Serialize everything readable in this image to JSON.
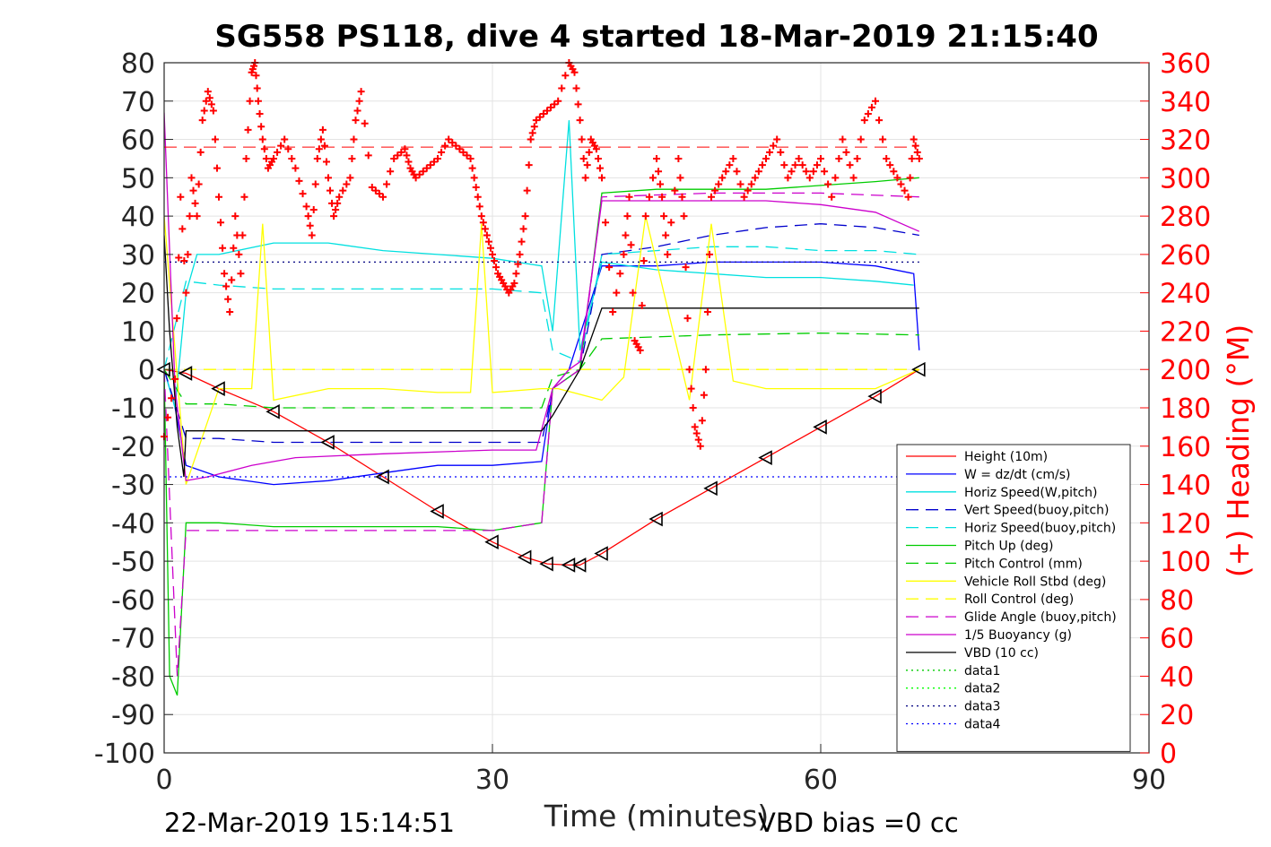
{
  "chart_data": {
    "type": "line",
    "title": "SG558 PS118, dive 4 started 18-Mar-2019 21:15:40",
    "xlabel": "Time (minutes)",
    "ylabel": "",
    "y2label": "(+) Heading (°M)",
    "xlim": [
      0,
      90
    ],
    "ylim": [
      -100,
      80
    ],
    "y2lim": [
      0,
      360
    ],
    "x_ticks": [
      "0",
      "30",
      "60",
      "90"
    ],
    "y_ticks": [
      "80",
      "70",
      "60",
      "50",
      "40",
      "30",
      "20",
      "10",
      "0",
      "-10",
      "-20",
      "-30",
      "-40",
      "-50",
      "-60",
      "-70",
      "-80",
      "-90",
      "-100"
    ],
    "y2_ticks": [
      "360",
      "340",
      "320",
      "300",
      "280",
      "260",
      "240",
      "220",
      "200",
      "180",
      "160",
      "140",
      "120",
      "100",
      "80",
      "60",
      "40",
      "20",
      "0"
    ],
    "grid": true,
    "legend_position": "bottom-right",
    "footer_left": "22-Mar-2019 15:14:51",
    "footer_right": "VBD bias =0 cc",
    "heading_ref_line": 316,
    "series": [
      {
        "name": "Height (10m)",
        "color": "#ff0000",
        "style": "solid",
        "x": [
          0,
          2,
          5,
          10,
          15,
          20,
          25,
          30,
          33,
          35,
          37,
          38,
          40,
          45,
          50,
          55,
          60,
          65,
          69
        ],
        "y": [
          0,
          -1,
          -5,
          -11,
          -19,
          -28,
          -37,
          -45,
          -49,
          -50.7,
          -51,
          -51,
          -48,
          -39,
          -31,
          -23,
          -15,
          -7,
          0
        ]
      },
      {
        "name": "W = dz/dt (cm/s)",
        "color": "#0000ff",
        "style": "solid",
        "x": [
          0,
          1,
          2,
          5,
          10,
          15,
          20,
          25,
          30,
          34.5,
          35.5,
          37,
          40,
          45,
          50,
          55,
          60,
          65,
          68.5,
          69
        ],
        "y": [
          0,
          -10,
          -25,
          -28,
          -30,
          -29,
          -27,
          -25,
          -25,
          -24,
          -5,
          0,
          27,
          27,
          28,
          28,
          28,
          27,
          25,
          5
        ]
      },
      {
        "name": "Horiz Speed(W,pitch)",
        "color": "#00e0e0",
        "style": "solid",
        "x": [
          0,
          1,
          2,
          3,
          5,
          10,
          15,
          20,
          25,
          30,
          34.5,
          35.5,
          37,
          38,
          40,
          45,
          50,
          55,
          60,
          65,
          68.5
        ],
        "y": [
          0,
          -10,
          20,
          30,
          30,
          33,
          33,
          31,
          30,
          29,
          27,
          10,
          65,
          5,
          28,
          26,
          25,
          24,
          24,
          23,
          22
        ]
      },
      {
        "name": "Vert Speed(buoy,pitch)",
        "color": "#0000cc",
        "style": "dashed",
        "x": [
          0,
          2,
          5,
          10,
          15,
          20,
          25,
          30,
          34.5,
          35.5,
          38,
          40,
          45,
          50,
          55,
          60,
          65,
          69
        ],
        "y": [
          0,
          -18,
          -18,
          -19,
          -19,
          -19,
          -19,
          -19,
          -19,
          -5,
          0,
          30,
          32,
          35,
          37,
          38,
          37,
          35
        ]
      },
      {
        "name": "Horiz Speed(buoy,pitch)",
        "color": "#00e0e0",
        "style": "dashed",
        "x": [
          0,
          2,
          5,
          10,
          15,
          20,
          25,
          30,
          34.5,
          35.5,
          38,
          40,
          45,
          50,
          55,
          60,
          65,
          69
        ],
        "y": [
          0,
          23,
          22,
          21,
          21,
          21,
          21,
          21,
          20,
          5,
          2,
          30,
          31,
          32,
          32,
          31,
          31,
          30
        ]
      },
      {
        "name": "Pitch Up (deg)",
        "color": "#00cc00",
        "style": "solid",
        "x": [
          0,
          0.5,
          1.2,
          2,
          3,
          5,
          10,
          15,
          20,
          25,
          30,
          34.5,
          35.5,
          38,
          40,
          45,
          50,
          55,
          60,
          65,
          69
        ],
        "y": [
          0,
          -80,
          -85,
          -40,
          -40,
          -40,
          -41,
          -41,
          -41,
          -41,
          -42,
          -40,
          -5,
          0,
          46,
          47,
          47,
          47,
          48,
          49,
          50
        ]
      },
      {
        "name": "Pitch Control (mm)",
        "color": "#00cc00",
        "style": "dashed",
        "x": [
          0,
          2,
          5,
          10,
          20,
          30,
          34.5,
          35.5,
          38,
          40,
          50,
          60,
          69
        ],
        "y": [
          0,
          -9,
          -9,
          -10,
          -10,
          -10,
          -10,
          -2,
          0,
          8,
          9,
          9.5,
          9
        ]
      },
      {
        "name": "Vehicle Roll Stbd (deg)",
        "color": "#ffff00",
        "style": "solid",
        "x": [
          0,
          2,
          5,
          8,
          9,
          10,
          15,
          20,
          25,
          28,
          29,
          30,
          34.5,
          36,
          40,
          42,
          44,
          48,
          50,
          52,
          55,
          60,
          65,
          69
        ],
        "y": [
          40,
          -30,
          -5,
          -5,
          38,
          -8,
          -5,
          -5,
          -6,
          -6,
          38,
          -6,
          -5,
          -5,
          -8,
          -2,
          40,
          -8,
          38,
          -3,
          -5,
          -5,
          -5,
          0
        ]
      },
      {
        "name": "Roll Control (deg)",
        "color": "#ffff00",
        "style": "dashed",
        "x": [
          0,
          69
        ],
        "y": [
          0,
          0
        ]
      },
      {
        "name": "Glide Angle (buoy,pitch)",
        "color": "#cc00cc",
        "style": "dashed",
        "x": [
          0,
          1.2,
          2,
          5,
          10,
          20,
          30,
          34.5,
          35.5,
          38,
          40,
          50,
          60,
          69
        ],
        "y": [
          0,
          -80,
          -42,
          -42,
          -42,
          -42,
          -42,
          -40,
          -5,
          0,
          45,
          46,
          46,
          45
        ]
      },
      {
        "name": "1/5 Buoyancy (g)",
        "color": "#cc00cc",
        "style": "solid",
        "x": [
          0,
          1,
          2,
          4,
          8,
          12,
          20,
          30,
          34,
          35.5,
          37,
          38,
          40,
          45,
          50,
          55,
          60,
          65,
          69
        ],
        "y": [
          67,
          -5,
          -29,
          -28,
          -25,
          -23,
          -22,
          -21,
          -21,
          -5,
          0,
          2,
          44,
          44,
          44,
          44,
          43,
          41,
          36
        ]
      },
      {
        "name": "VBD (10 cc)",
        "color": "#000000",
        "style": "solid",
        "x": [
          0,
          0.5,
          1.2,
          1.8,
          2,
          34.5,
          35.5,
          38,
          40,
          45,
          50,
          55,
          60,
          65,
          69
        ],
        "y": [
          35,
          10,
          -15,
          -28,
          -16,
          -16,
          -12,
          0,
          16,
          16,
          16,
          16,
          16,
          16,
          16
        ]
      },
      {
        "name": "data1",
        "color": "#00cc00",
        "style": "dotted",
        "x": [],
        "y": []
      },
      {
        "name": "data2",
        "color": "#00ff00",
        "style": "dotted",
        "x": [],
        "y": []
      },
      {
        "name": "data3",
        "color": "#000080",
        "style": "dotted",
        "x": [
          0,
          69
        ],
        "y": [
          28,
          28
        ]
      },
      {
        "name": "data4",
        "color": "#0000ff",
        "style": "dotted",
        "x": [
          0,
          69
        ],
        "y": [
          -28,
          -28
        ]
      }
    ],
    "heading": {
      "axis": "right",
      "color": "#ff0000",
      "marker": "+",
      "x": [
        0,
        1,
        1.5,
        2,
        2.5,
        3,
        3.5,
        4,
        4.5,
        5,
        5.5,
        6,
        6.5,
        7,
        7.5,
        8,
        8.3,
        8.6,
        9,
        9.5,
        10,
        11,
        12,
        13,
        13.5,
        14,
        14.5,
        15,
        15.5,
        16,
        17,
        17.5,
        18,
        19,
        20,
        21,
        22,
        22.5,
        23,
        24,
        25,
        26,
        27,
        28,
        28.5,
        29,
        29.5,
        30,
        30.5,
        31,
        31.5,
        32,
        32.5,
        33,
        33.5,
        34,
        35,
        36,
        37,
        37.5,
        38,
        38.5,
        39,
        39.5,
        40,
        41,
        42,
        42.5,
        43,
        43.5,
        44,
        45,
        45.5,
        46,
        47,
        47.5,
        48,
        48.5,
        49,
        49.5,
        50,
        51,
        52,
        53,
        54,
        55,
        56,
        57,
        58,
        59,
        60,
        61,
        62,
        63,
        64,
        65,
        66,
        67,
        68,
        68.5,
        69
      ],
      "y": [
        165,
        195,
        290,
        240,
        300,
        280,
        330,
        345,
        335,
        290,
        250,
        230,
        280,
        250,
        310,
        355,
        360,
        340,
        320,
        305,
        310,
        320,
        305,
        285,
        270,
        310,
        325,
        300,
        280,
        290,
        300,
        330,
        345,
        295,
        290,
        310,
        315,
        305,
        300,
        305,
        310,
        320,
        315,
        310,
        295,
        280,
        270,
        260,
        250,
        245,
        240,
        245,
        260,
        280,
        320,
        330,
        335,
        340,
        360,
        355,
        330,
        300,
        320,
        315,
        300,
        230,
        260,
        290,
        215,
        210,
        280,
        310,
        290,
        260,
        310,
        280,
        200,
        170,
        160,
        200,
        290,
        300,
        310,
        290,
        300,
        310,
        320,
        300,
        310,
        300,
        310,
        290,
        320,
        300,
        330,
        340,
        310,
        300,
        290,
        320,
        310
      ]
    }
  }
}
